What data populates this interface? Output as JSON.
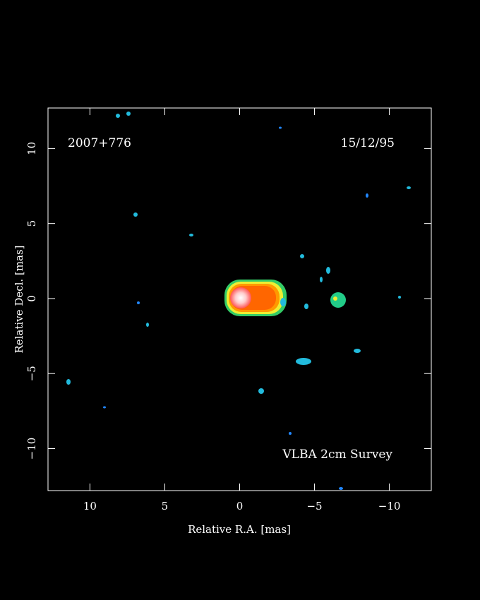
{
  "chart_data": {
    "type": "image",
    "source": "2007+776",
    "date": "15/12/95",
    "annotation": "VLBA 2cm Survey",
    "x_label": "Relative R.A. [mas]",
    "y_label": "Relative Decl. [mas]",
    "xlim": [
      12.8,
      -12.8
    ],
    "ylim": [
      -12.8,
      12.7
    ],
    "xticks": [
      10,
      5,
      0,
      {
        "value": -5,
        "label": "−5"
      },
      {
        "value": -10,
        "label": "−10"
      }
    ],
    "yticks": [
      {
        "value": -10,
        "label": "−10"
      },
      {
        "value": -5,
        "label": "−5"
      },
      0,
      5,
      10
    ]
  }
}
